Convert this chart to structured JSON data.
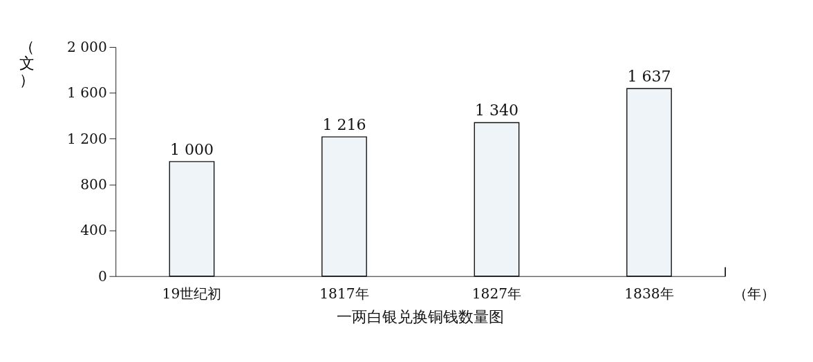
{
  "chart_data": {
    "type": "bar",
    "title": "一两白银兑换铜钱数量图",
    "xlabel": "（年）",
    "ylabel": "（文）",
    "categories": [
      "19世纪初",
      "1817年",
      "1827年",
      "1838年"
    ],
    "values": [
      1000,
      1216,
      1340,
      1637
    ],
    "value_labels": [
      "1 000",
      "1 216",
      "1 340",
      "1 637"
    ],
    "color": "#eef4f8",
    "ylim": [
      0,
      2000
    ],
    "yticks": [
      0,
      400,
      800,
      {
        "value": 1200,
        "label": "1 200"
      },
      {
        "value": 1600,
        "label": "1 600"
      },
      {
        "value": 2000,
        "label": "2 000"
      }
    ],
    "grid": false
  }
}
